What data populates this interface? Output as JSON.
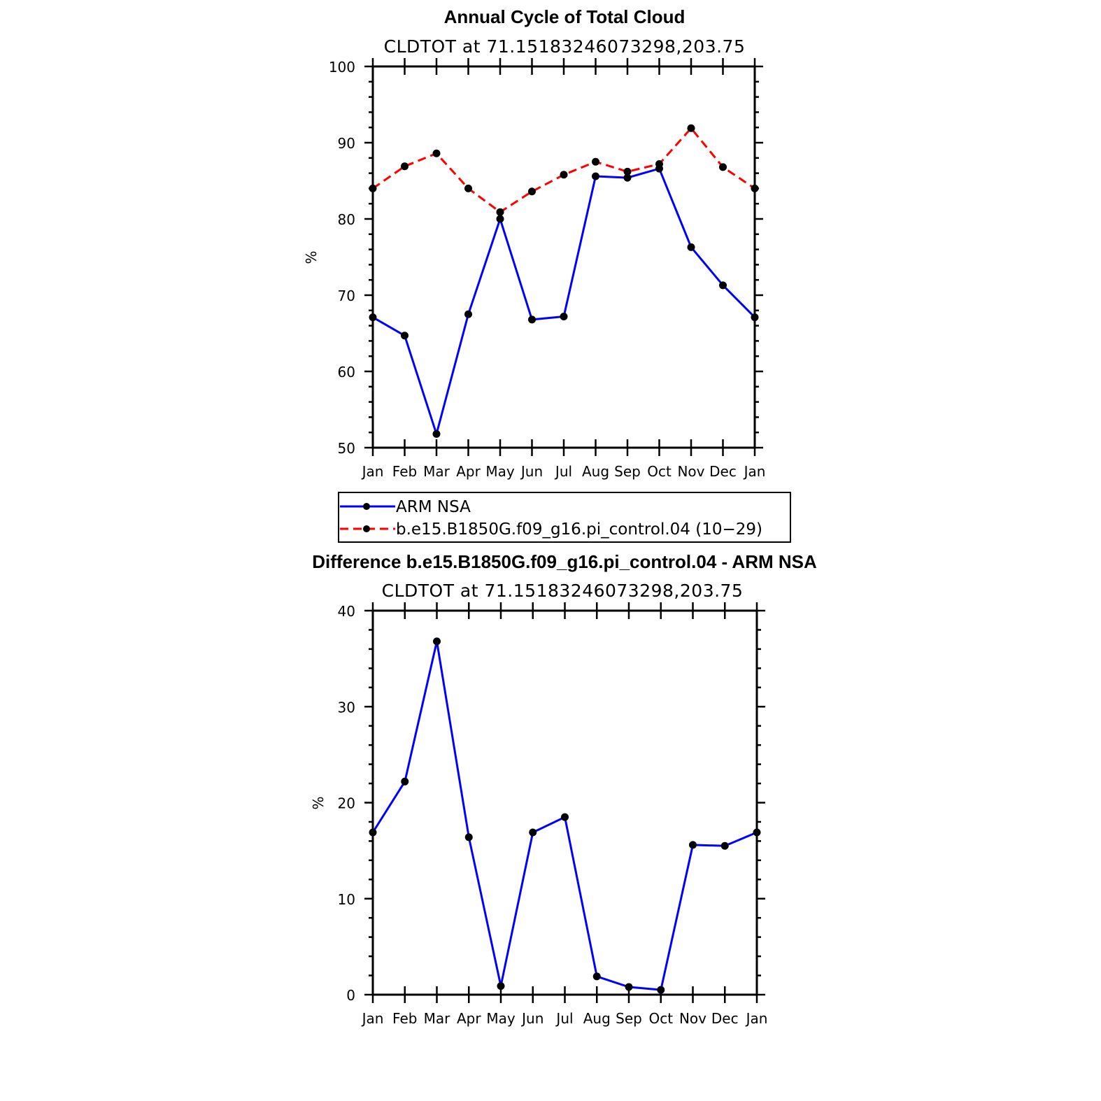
{
  "chart_data": [
    {
      "type": "line",
      "title": "Annual Cycle of Total Cloud",
      "subtitle": "CLDTOT at 71.15183246073298,203.75",
      "xlabel": "",
      "ylabel": "%",
      "categories": [
        "Jan",
        "Feb",
        "Mar",
        "Apr",
        "May",
        "Jun",
        "Jul",
        "Aug",
        "Sep",
        "Oct",
        "Nov",
        "Dec",
        "Jan"
      ],
      "ylim": [
        50,
        100
      ],
      "yticks": [
        50,
        60,
        70,
        80,
        90,
        100
      ],
      "series": [
        {
          "name": "ARM NSA",
          "color": "#0000ff",
          "dash": "solid",
          "values": [
            67.1,
            64.7,
            51.8,
            67.5,
            80.0,
            66.8,
            67.2,
            85.6,
            85.4,
            86.6,
            76.3,
            71.3,
            67.1
          ]
        },
        {
          "name": "b.e15.B1850G.f09_g16.pi_control.04 (10−29)",
          "color": "#ff0000",
          "dash": "dashed",
          "values": [
            84.0,
            86.9,
            88.6,
            84.0,
            80.9,
            83.6,
            85.8,
            87.5,
            86.2,
            87.2,
            91.9,
            86.8,
            84.0
          ]
        }
      ],
      "legend": {
        "position": "below"
      }
    },
    {
      "type": "line",
      "title": "Difference b.e15.B1850G.f09_g16.pi_control.04 - ARM NSA",
      "subtitle": "CLDTOT at 71.15183246073298,203.75",
      "xlabel": "",
      "ylabel": "%",
      "categories": [
        "Jan",
        "Feb",
        "Mar",
        "Apr",
        "May",
        "Jun",
        "Jul",
        "Aug",
        "Sep",
        "Oct",
        "Nov",
        "Dec",
        "Jan"
      ],
      "ylim": [
        0,
        40
      ],
      "yticks": [
        0,
        10,
        20,
        30,
        40
      ],
      "series": [
        {
          "color": "#0000ff",
          "dash": "solid",
          "values": [
            16.9,
            22.2,
            36.8,
            16.4,
            0.9,
            16.9,
            18.5,
            1.9,
            0.8,
            0.5,
            15.6,
            15.5,
            16.9
          ]
        }
      ]
    }
  ]
}
